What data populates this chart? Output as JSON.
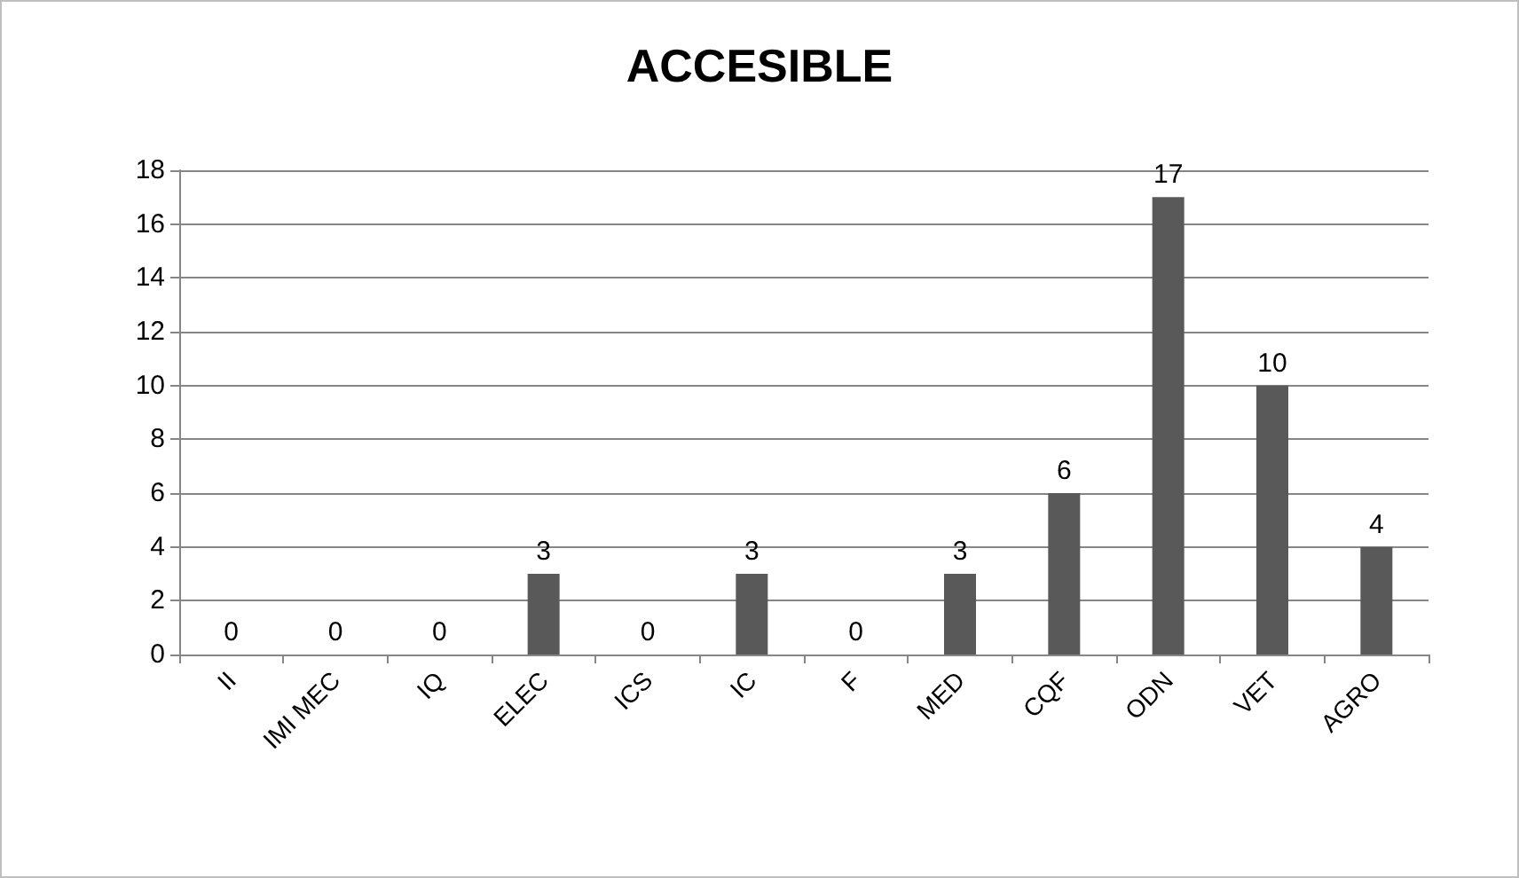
{
  "chart_data": {
    "type": "bar",
    "title": "ACCESIBLE",
    "categories": [
      "II",
      "IMI MEC",
      "IQ",
      "ELEC",
      "ICS",
      "IC",
      "F",
      "MED",
      "CQF",
      "ODN",
      "VET",
      "AGRO"
    ],
    "values": [
      0,
      0,
      0,
      3,
      0,
      3,
      0,
      3,
      6,
      17,
      10,
      4
    ],
    "color": "#595959",
    "ylim": [
      0,
      18
    ],
    "yticks": [
      0,
      2,
      4,
      6,
      8,
      10,
      12,
      14,
      16,
      18
    ],
    "grid": "y",
    "data_labels": true
  }
}
